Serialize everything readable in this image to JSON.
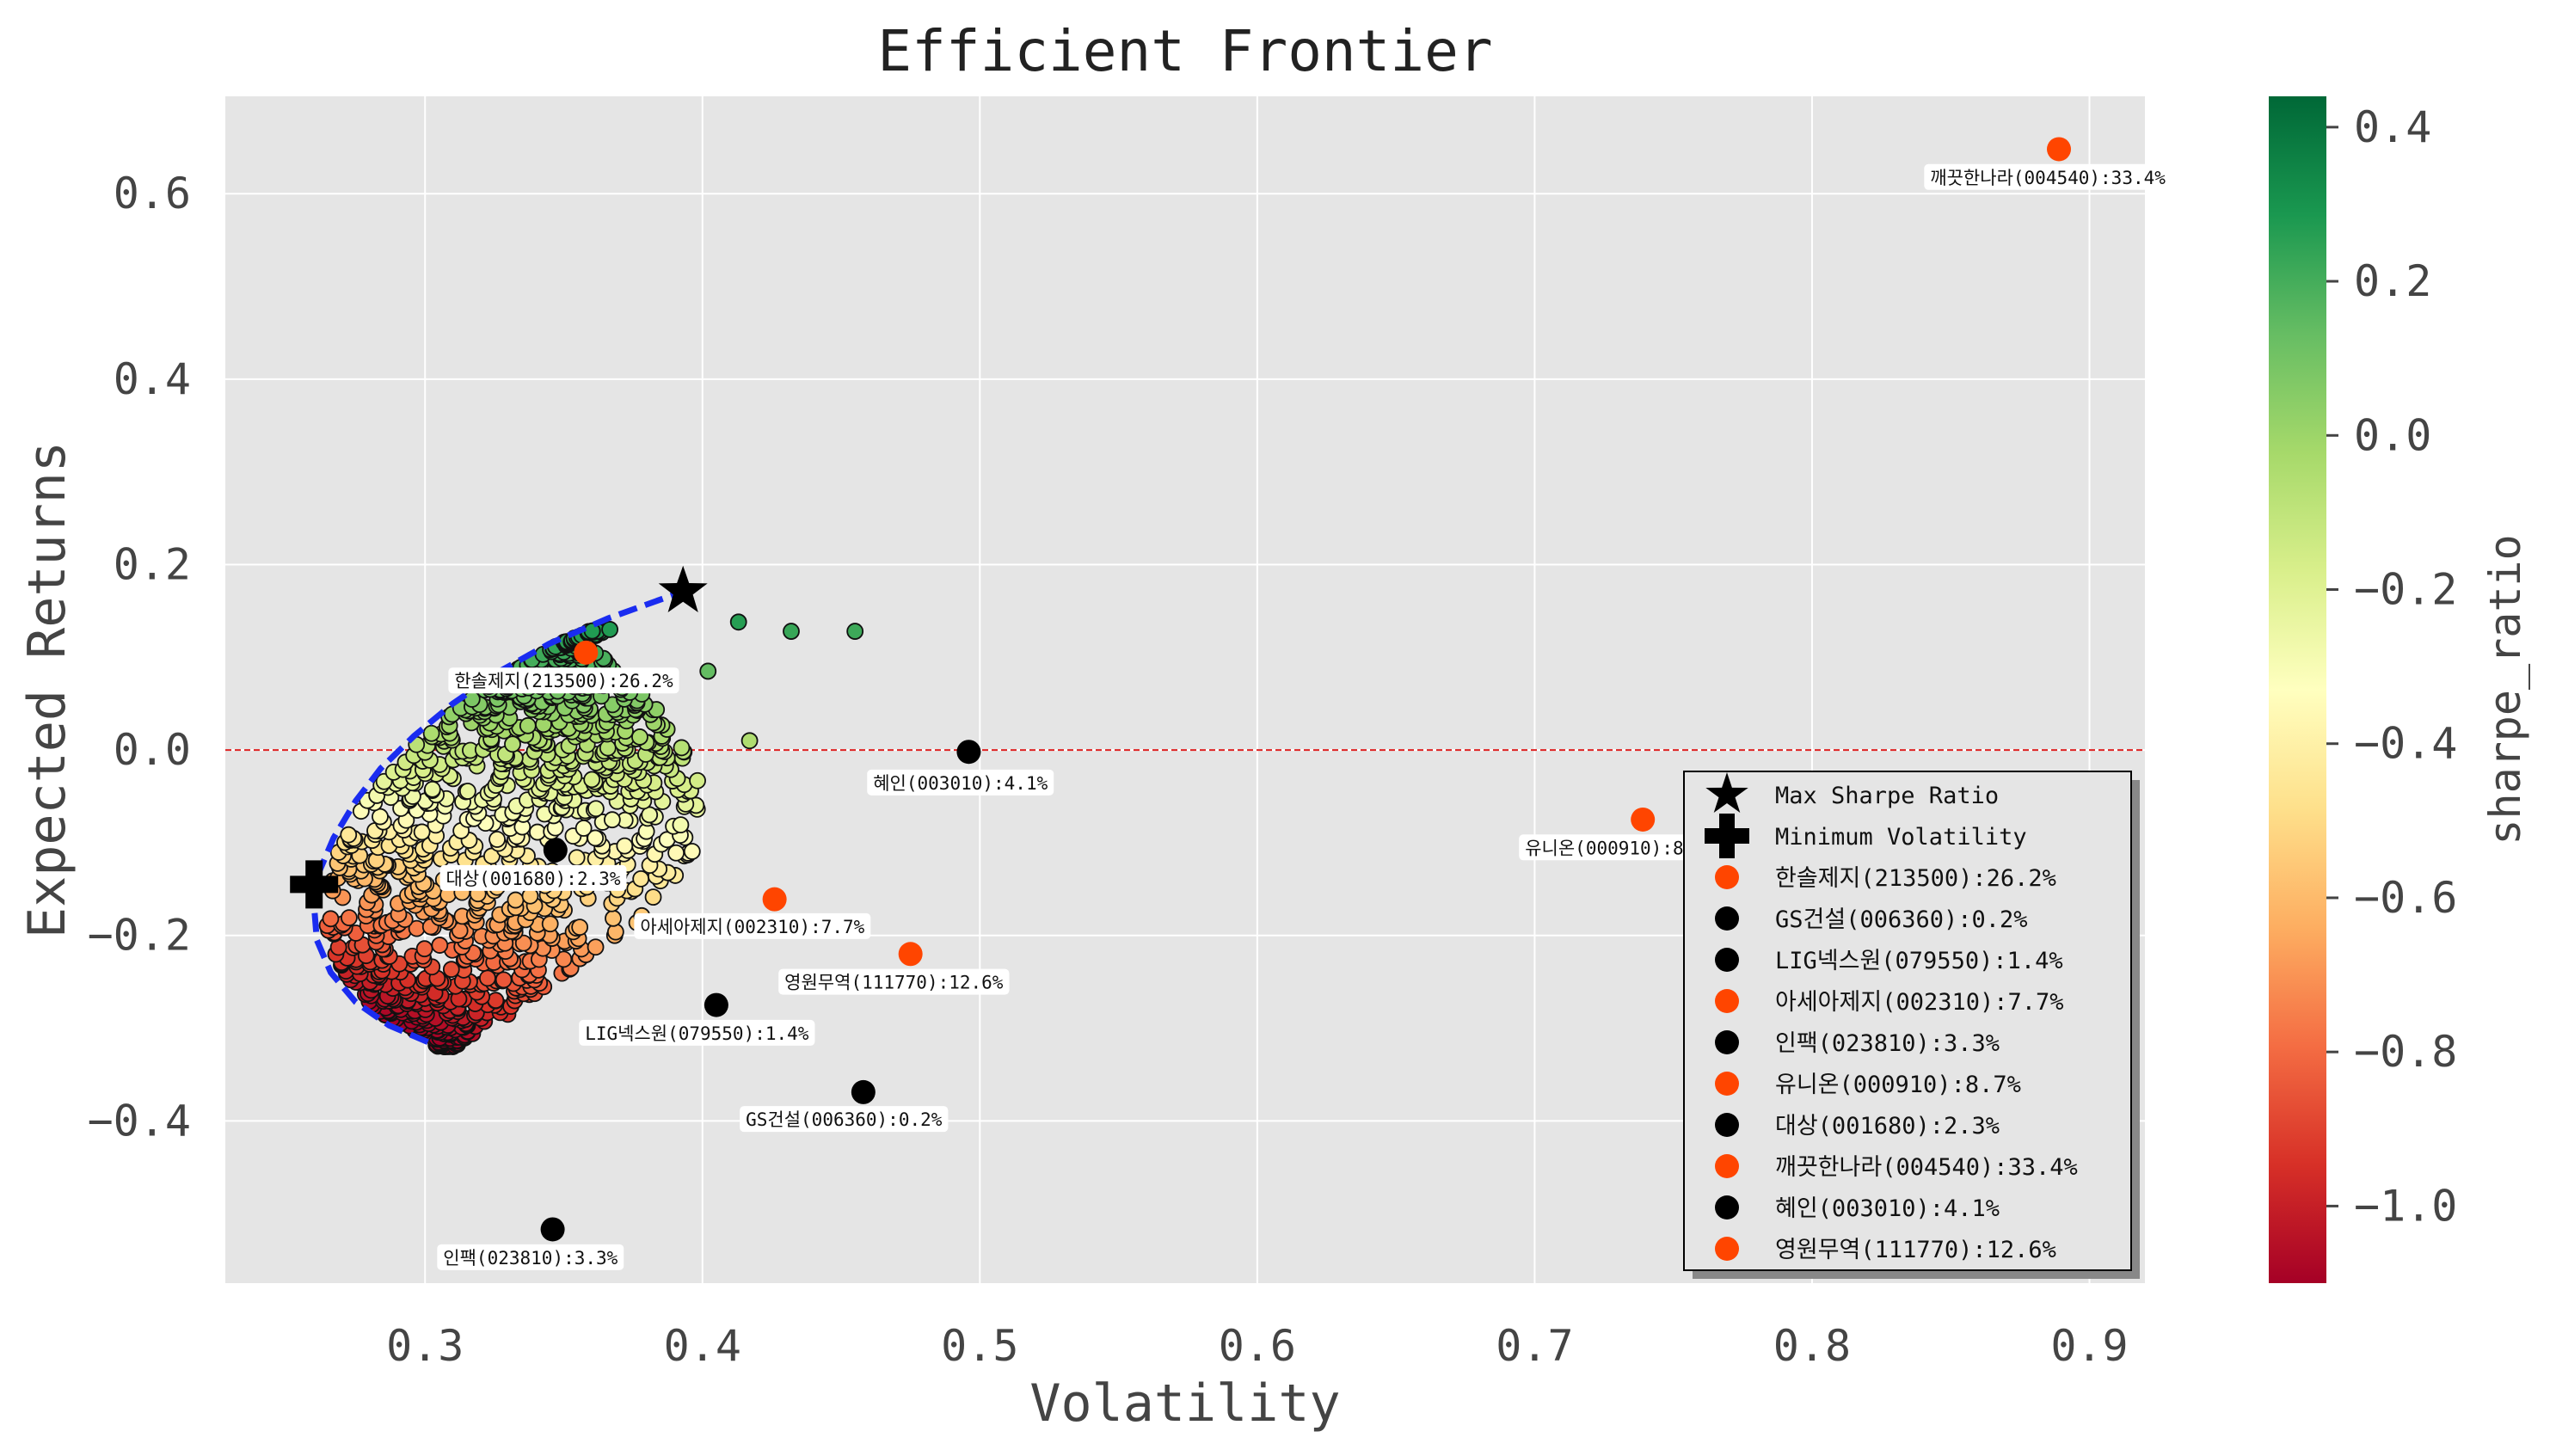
{
  "chart_data": {
    "type": "scatter",
    "title": "Efficient Frontier",
    "xlabel": "Volatility",
    "ylabel": "Expected Returns",
    "xlim": [
      0.228,
      0.92
    ],
    "ylim": [
      -0.575,
      0.705
    ],
    "xticks": [
      0.3,
      0.4,
      0.5,
      0.6,
      0.7,
      0.8,
      0.9
    ],
    "xtick_labels": [
      "0.3",
      "0.4",
      "0.5",
      "0.6",
      "0.7",
      "0.8",
      "0.9"
    ],
    "yticks": [
      0.6,
      0.4,
      0.2,
      0.0,
      -0.2,
      -0.4
    ],
    "ytick_labels": [
      "0.6",
      "0.4",
      "0.2",
      "0.0",
      "−0.2",
      "−0.4"
    ],
    "grid": true,
    "background": "#e5e5e5",
    "zero_line": {
      "y": 0.0,
      "color": "#dd2222"
    },
    "colorbar": {
      "label": "sharpe_ratio",
      "colormap": "RdYlGn",
      "range": [
        -1.1,
        0.44
      ],
      "ticks": [
        0.4,
        0.2,
        0.0,
        -0.2,
        -0.4,
        -0.6,
        -0.8,
        -1.0
      ],
      "tick_labels": [
        "0.4",
        "0.2",
        "0.0",
        "−0.2",
        "−0.4",
        "−0.6",
        "−0.8",
        "−1.0"
      ]
    },
    "portfolio_cloud": {
      "count": 1200,
      "volatility_range": [
        0.258,
        0.455
      ],
      "return_range": [
        -0.33,
        0.14
      ],
      "outliers": [
        [
          0.413,
          0.138
        ],
        [
          0.432,
          0.128
        ],
        [
          0.455,
          0.128
        ],
        [
          0.402,
          0.085
        ],
        [
          0.417,
          0.01
        ]
      ]
    },
    "frontier": {
      "color": "#1a2cf0",
      "points": [
        [
          0.301,
          -0.315
        ],
        [
          0.287,
          -0.297
        ],
        [
          0.275,
          -0.272
        ],
        [
          0.266,
          -0.24
        ],
        [
          0.261,
          -0.205
        ],
        [
          0.26,
          -0.168
        ],
        [
          0.262,
          -0.13
        ],
        [
          0.267,
          -0.095
        ],
        [
          0.275,
          -0.055
        ],
        [
          0.284,
          -0.02
        ],
        [
          0.296,
          0.015
        ],
        [
          0.31,
          0.05
        ],
        [
          0.327,
          0.085
        ],
        [
          0.345,
          0.115
        ],
        [
          0.366,
          0.142
        ],
        [
          0.393,
          0.171
        ]
      ]
    },
    "max_sharpe": {
      "label": "Max Sharpe Ratio",
      "volatility": 0.393,
      "return": 0.171
    },
    "min_volatility": {
      "label": "Minimum Volatility",
      "volatility": 0.26,
      "return": -0.145
    },
    "assets": [
      {
        "label": "한솔제지(213500):26.2%",
        "volatility": 0.358,
        "return": 0.105,
        "color": "#ff4500"
      },
      {
        "label": "GS건설(006360):0.2%",
        "volatility": 0.458,
        "return": -0.369,
        "color": "#000000"
      },
      {
        "label": "LIG넥스원(079550):1.4%",
        "volatility": 0.405,
        "return": -0.275,
        "color": "#000000"
      },
      {
        "label": "아세아제지(002310):7.7%",
        "volatility": 0.426,
        "return": -0.161,
        "color": "#ff4500"
      },
      {
        "label": "인팩(023810):3.3%",
        "volatility": 0.346,
        "return": -0.517,
        "color": "#000000"
      },
      {
        "label": "유니온(000910):8.7%",
        "volatility": 0.739,
        "return": -0.075,
        "color": "#ff4500"
      },
      {
        "label": "대상(001680):2.3%",
        "volatility": 0.347,
        "return": -0.108,
        "color": "#000000"
      },
      {
        "label": "깨끗한나라(004540):33.4%",
        "volatility": 0.889,
        "return": 0.648,
        "color": "#ff4500"
      },
      {
        "label": "혜인(003010):4.1%",
        "volatility": 0.496,
        "return": -0.002,
        "color": "#000000"
      },
      {
        "label": "영원무역(111770):12.6%",
        "volatility": 0.475,
        "return": -0.22,
        "color": "#ff4500"
      }
    ],
    "annotations": [
      {
        "text": "한솔제지(213500):26.2%",
        "x": 0.35,
        "y": 0.075
      },
      {
        "text": "혜인(003010):4.1%",
        "x": 0.493,
        "y": -0.035
      },
      {
        "text": "유니온(000910):8.7%",
        "x": 0.731,
        "y": -0.105,
        "clip_x": 0.771
      },
      {
        "text": "깨끗한나라(004540):33.4%",
        "x": 0.885,
        "y": 0.618
      },
      {
        "text": "대상(001680):2.3%",
        "x": 0.339,
        "y": -0.138
      },
      {
        "text": "아세아제지(002310):7.7%",
        "x": 0.418,
        "y": -0.19
      },
      {
        "text": "영원무역(111770):12.6%",
        "x": 0.469,
        "y": -0.25
      },
      {
        "text": "LIG넥스원(079550):1.4%",
        "x": 0.398,
        "y": -0.305
      },
      {
        "text": "GS건설(006360):0.2%",
        "x": 0.451,
        "y": -0.398
      },
      {
        "text": "인팩(023810):3.3%",
        "x": 0.338,
        "y": -0.547
      }
    ],
    "legend": {
      "position": "lower-right",
      "entries": [
        "Max Sharpe Ratio",
        "Minimum Volatility",
        "한솔제지(213500):26.2%",
        "GS건설(006360):0.2%",
        "LIG넥스원(079550):1.4%",
        "아세아제지(002310):7.7%",
        "인팩(023810):3.3%",
        "유니온(000910):8.7%",
        "대상(001680):2.3%",
        "깨끗한나라(004540):33.4%",
        "혜인(003010):4.1%",
        "영원무역(111770):12.6%"
      ]
    }
  }
}
